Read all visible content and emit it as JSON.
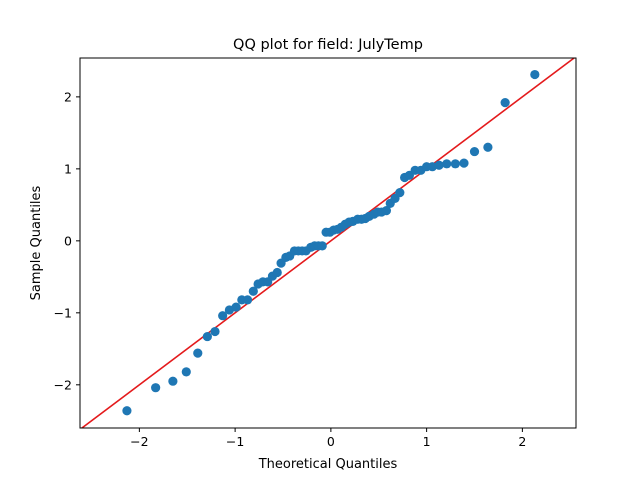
{
  "chart_data": {
    "type": "scatter",
    "title": "QQ plot for field: JulyTemp",
    "xlabel": "Theoretical Quantiles",
    "ylabel": "Sample Quantiles",
    "xlim": [
      -2.62,
      2.56
    ],
    "ylim": [
      -2.6,
      2.54
    ],
    "x_ticks": [
      -2,
      -1,
      0,
      1,
      2
    ],
    "y_ticks": [
      -2,
      -1,
      0,
      1,
      2
    ],
    "x_tick_labels": [
      "−2",
      "−1",
      "0",
      "1",
      "2"
    ],
    "y_tick_labels": [
      "−2",
      "−1",
      "0",
      "1",
      "2"
    ],
    "grid": false,
    "legend": null,
    "marker_color": "#1f77b4",
    "line_color": "#e41a1c",
    "reference_line": {
      "name": "45-degree line",
      "slope": 1,
      "intercept": 0
    },
    "points": [
      [
        -2.13,
        -2.36
      ],
      [
        -1.83,
        -2.04
      ],
      [
        -1.65,
        -1.95
      ],
      [
        -1.51,
        -1.82
      ],
      [
        -1.39,
        -1.56
      ],
      [
        -1.29,
        -1.33
      ],
      [
        -1.21,
        -1.26
      ],
      [
        -1.13,
        -1.04
      ],
      [
        -1.06,
        -0.96
      ],
      [
        -0.99,
        -0.92
      ],
      [
        -0.93,
        -0.82
      ],
      [
        -0.87,
        -0.82
      ],
      [
        -0.81,
        -0.7
      ],
      [
        -0.76,
        -0.6
      ],
      [
        -0.71,
        -0.57
      ],
      [
        -0.66,
        -0.57
      ],
      [
        -0.61,
        -0.49
      ],
      [
        -0.56,
        -0.44
      ],
      [
        -0.52,
        -0.31
      ],
      [
        -0.47,
        -0.23
      ],
      [
        -0.43,
        -0.21
      ],
      [
        -0.38,
        -0.14
      ],
      [
        -0.34,
        -0.14
      ],
      [
        -0.3,
        -0.14
      ],
      [
        -0.26,
        -0.14
      ],
      [
        -0.21,
        -0.09
      ],
      [
        -0.17,
        -0.07
      ],
      [
        -0.13,
        -0.07
      ],
      [
        -0.09,
        -0.07
      ],
      [
        -0.05,
        0.12
      ],
      [
        -0.01,
        0.12
      ],
      [
        0.03,
        0.15
      ],
      [
        0.07,
        0.16
      ],
      [
        0.11,
        0.19
      ],
      [
        0.15,
        0.23
      ],
      [
        0.19,
        0.26
      ],
      [
        0.23,
        0.27
      ],
      [
        0.28,
        0.3
      ],
      [
        0.32,
        0.3
      ],
      [
        0.36,
        0.31
      ],
      [
        0.4,
        0.34
      ],
      [
        0.45,
        0.37
      ],
      [
        0.49,
        0.4
      ],
      [
        0.53,
        0.4
      ],
      [
        0.58,
        0.42
      ],
      [
        0.62,
        0.52
      ],
      [
        0.67,
        0.59
      ],
      [
        0.72,
        0.67
      ],
      [
        0.77,
        0.88
      ],
      [
        0.82,
        0.91
      ],
      [
        0.88,
        0.98
      ],
      [
        0.94,
        0.98
      ],
      [
        1.0,
        1.03
      ],
      [
        1.06,
        1.03
      ],
      [
        1.13,
        1.05
      ],
      [
        1.21,
        1.07
      ],
      [
        1.3,
        1.07
      ],
      [
        1.39,
        1.08
      ],
      [
        1.5,
        1.24
      ],
      [
        1.64,
        1.3
      ],
      [
        1.82,
        1.92
      ],
      [
        2.13,
        2.31
      ]
    ]
  }
}
